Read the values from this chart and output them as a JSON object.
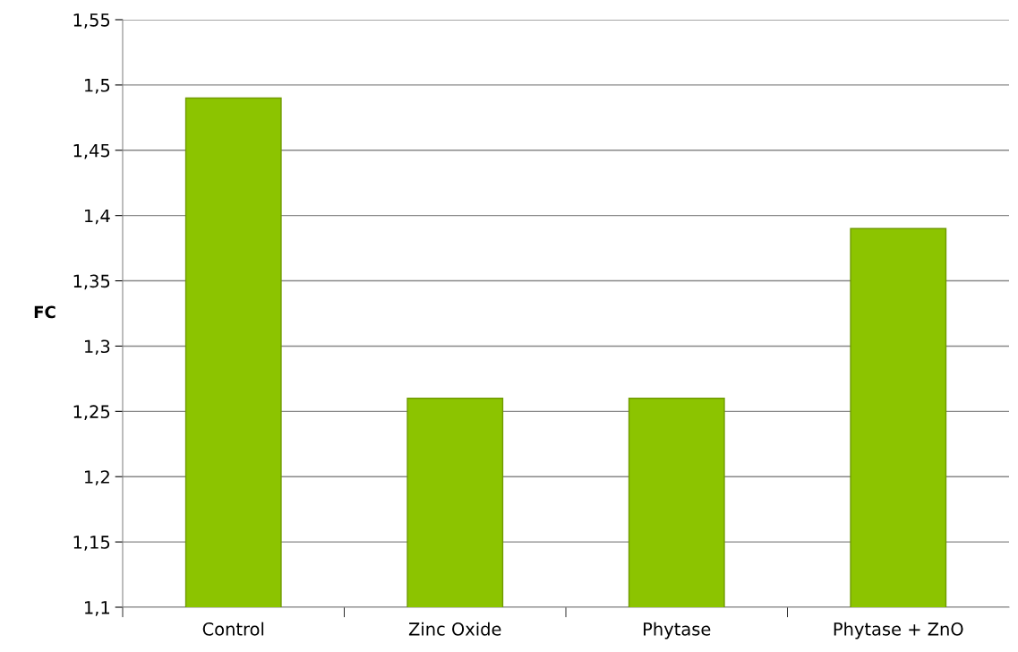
{
  "chart_data": {
    "type": "bar",
    "ylabel": "FC",
    "categories": [
      "Control",
      "Zinc Oxide",
      "Phytase",
      "Phytase + ZnO"
    ],
    "values": [
      1.49,
      1.26,
      1.26,
      1.39
    ],
    "color": "#8cc400",
    "ylim": [
      1.1,
      1.55
    ],
    "yticks": [
      {
        "value": 1.1,
        "label": "1,1"
      },
      {
        "value": 1.15,
        "label": "1,15"
      },
      {
        "value": 1.2,
        "label": "1,2"
      },
      {
        "value": 1.25,
        "label": "1,25"
      },
      {
        "value": 1.3,
        "label": "1,3"
      },
      {
        "value": 1.35,
        "label": "1,35"
      },
      {
        "value": 1.4,
        "label": "1,4"
      },
      {
        "value": 1.45,
        "label": "1,45"
      },
      {
        "value": 1.5,
        "label": "1,5"
      },
      {
        "value": 1.55,
        "label": "1,55"
      }
    ],
    "grid": "y"
  }
}
